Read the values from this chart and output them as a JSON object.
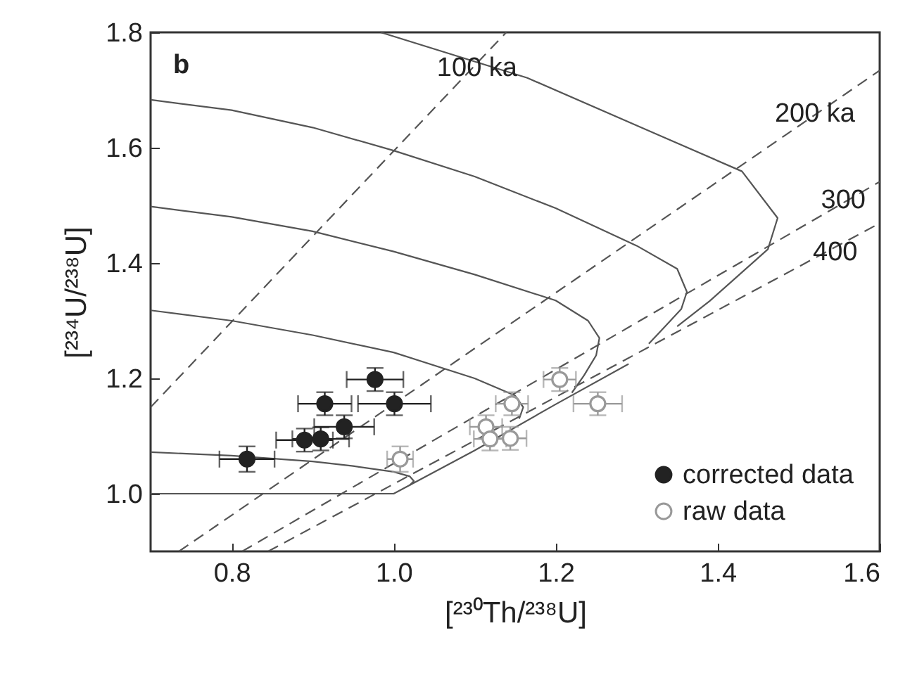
{
  "chart_data": {
    "type": "scatter",
    "xlabel": "[²³⁰Th/²³⁸U]",
    "ylabel": "[²³⁴U/²³⁸U]",
    "xlim": [
      0.7,
      1.6
    ],
    "ylim": [
      0.9,
      1.8
    ],
    "xticks": [
      0.8,
      {
        "value": 1,
        "label": "1.0"
      },
      1.2,
      1.4,
      1.6
    ],
    "yticks": [
      {
        "value": 1,
        "label": "1.0"
      },
      1.2,
      1.4,
      1.6,
      1.8
    ],
    "grid": false,
    "legend": "bottom right",
    "marker": "circle",
    "annotations": [
      "b",
      {
        "text": "100 ka",
        "x": 1.103,
        "y": 1.739
      },
      {
        "text": "200 ka",
        "x": 1.52,
        "y": 1.66
      },
      {
        "text": "300",
        "x": 1.555,
        "y": 1.51
      },
      {
        "text": "400",
        "x": 1.545,
        "y": 1.42
      }
    ],
    "series": [
      {
        "type": "line",
        "line_style": "solid",
        "color": "#555555",
        "marker": "none",
        "x": [
          0.7,
          1.0,
          1.1,
          1.2,
          1.29
        ],
        "values": [
          1.0,
          1.0,
          1.075,
          1.155,
          1.225
        ]
      },
      {
        "type": "line",
        "line_style": "solid",
        "color": "#555555",
        "marker": "none",
        "x": [
          0.7,
          0.8,
          0.9,
          0.95,
          1.0,
          1.02,
          1.025,
          1.02
        ],
        "values": [
          1.072,
          1.066,
          1.056,
          1.048,
          1.038,
          1.03,
          1.022,
          1.015
        ]
      },
      {
        "type": "line",
        "line_style": "solid",
        "color": "#555555",
        "marker": "none",
        "x": [
          0.7,
          0.8,
          0.9,
          1.0,
          1.1,
          1.15,
          1.16,
          1.155
        ],
        "values": [
          1.318,
          1.3,
          1.275,
          1.245,
          1.2,
          1.17,
          1.15,
          1.13
        ]
      },
      {
        "type": "line",
        "line_style": "solid",
        "color": "#555555",
        "marker": "none",
        "x": [
          0.7,
          0.8,
          0.9,
          1.0,
          1.1,
          1.2,
          1.24,
          1.254,
          1.25,
          1.235,
          1.22
        ],
        "values": [
          1.498,
          1.48,
          1.455,
          1.42,
          1.38,
          1.335,
          1.3,
          1.27,
          1.24,
          1.205,
          1.175
        ]
      },
      {
        "type": "line",
        "line_style": "solid",
        "color": "#555555",
        "marker": "none",
        "x": [
          0.7,
          0.8,
          0.9,
          1.0,
          1.1,
          1.2,
          1.3,
          1.35,
          1.362,
          1.355,
          1.335,
          1.315
        ],
        "values": [
          1.683,
          1.665,
          1.635,
          1.595,
          1.55,
          1.495,
          1.43,
          1.39,
          1.35,
          1.32,
          1.29,
          1.26
        ]
      },
      {
        "type": "line",
        "line_style": "solid",
        "color": "#555555",
        "marker": "none",
        "x": [
          0.984,
          1.165,
          1.327,
          1.43,
          1.474,
          1.462,
          1.39,
          1.35
        ],
        "values": [
          1.8,
          1.721,
          1.622,
          1.559,
          1.478,
          1.424,
          1.334,
          1.29
        ]
      },
      {
        "type": "line",
        "line_style": "dashed",
        "color": "#555555",
        "marker": "none",
        "x": [
          0.7,
          1.139
        ],
        "values": [
          1.15,
          1.8
        ]
      },
      {
        "type": "line",
        "line_style": "dashed",
        "color": "#555555",
        "marker": "none",
        "x": [
          0.735,
          1.6
        ],
        "values": [
          0.9,
          1.734
        ]
      },
      {
        "type": "line",
        "line_style": "dashed",
        "color": "#555555",
        "marker": "none",
        "x": [
          0.813,
          1.6
        ],
        "values": [
          0.9,
          1.541
        ]
      },
      {
        "type": "line",
        "line_style": "dashed",
        "color": "#555555",
        "marker": "none",
        "x": [
          0.845,
          1.6
        ],
        "values": [
          0.9,
          1.469
        ]
      },
      {
        "name": "corrected data",
        "color": "#222222",
        "x": [
          0.819,
          0.89,
          0.91,
          0.915,
          0.939,
          0.977,
          1.001
        ],
        "values": [
          1.06,
          1.093,
          1.095,
          1.156,
          1.116,
          1.198,
          1.156
        ],
        "xerrors": [
          0.034,
          0.035,
          0.035,
          0.033,
          0.037,
          0.035,
          0.045
        ],
        "errors": [
          0.022,
          0.02,
          0.02,
          0.02,
          0.02,
          0.02,
          0.02
        ]
      },
      {
        "name": "raw data",
        "color": "#999999",
        "x": [
          1.008,
          1.114,
          1.119,
          1.146,
          1.144,
          1.205,
          1.252
        ],
        "values": [
          1.06,
          1.116,
          1.095,
          1.156,
          1.096,
          1.198,
          1.156
        ],
        "xerrors": [
          0.016,
          0.02,
          0.02,
          0.02,
          0.02,
          0.02,
          0.03
        ],
        "errors": [
          0.022,
          0.02,
          0.02,
          0.02,
          0.02,
          0.02,
          0.02
        ]
      }
    ]
  }
}
